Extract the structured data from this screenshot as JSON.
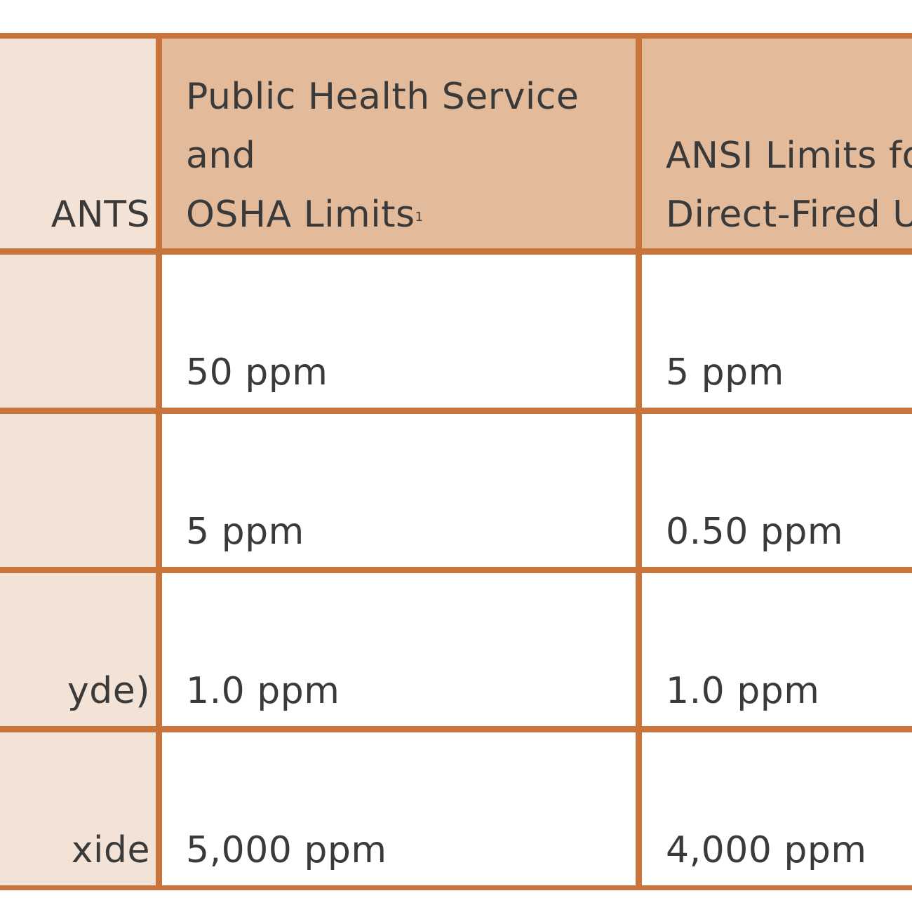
{
  "table": {
    "headers": {
      "col1": "ANTS",
      "col2_lines": [
        "Public Health Service",
        "and",
        "OSHA Limits"
      ],
      "col2_footnote": "1",
      "col3_lines": [
        "ANSI Limits fo",
        "Direct-Fired U"
      ]
    },
    "rows": [
      {
        "pollutant": "",
        "osha": "50 ppm",
        "ansi": "5 ppm"
      },
      {
        "pollutant": "",
        "osha": "5 ppm",
        "ansi": "0.50 ppm"
      },
      {
        "pollutant": "yde)",
        "osha": "1.0 ppm",
        "ansi": "1.0 ppm"
      },
      {
        "pollutant": "xide",
        "osha": "5,000 ppm",
        "ansi": "4,000 ppm"
      }
    ]
  },
  "colors": {
    "border": "#c8743a",
    "header_bg": "#e3bb9b",
    "first_col_bg": "#f3e2d6",
    "body_bg": "#ffffff"
  }
}
